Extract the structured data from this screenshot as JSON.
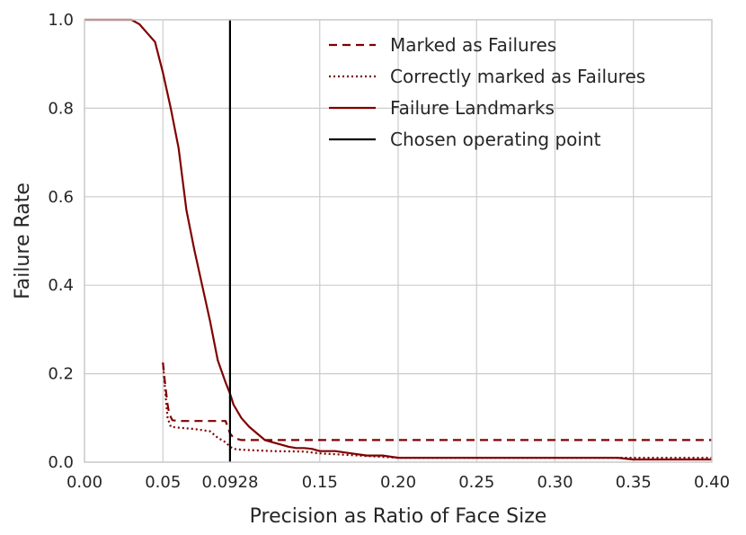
{
  "chart_data": {
    "type": "line",
    "title": "",
    "xlabel": "Precision as Ratio of Face Size",
    "ylabel": "Failure Rate",
    "xlim": [
      0.0,
      0.4
    ],
    "ylim": [
      0.0,
      1.0
    ],
    "xticks": [
      0.0,
      0.05,
      0.0928,
      0.15,
      0.2,
      0.25,
      0.3,
      0.35,
      0.4
    ],
    "xtick_labels": [
      "0.00",
      "0.05",
      "0.0928",
      "0.15",
      "0.20",
      "0.25",
      "0.30",
      "0.35",
      "0.40"
    ],
    "yticks": [
      0.0,
      0.2,
      0.4,
      0.6,
      0.8,
      1.0
    ],
    "ytick_labels": [
      "0.0",
      "0.2",
      "0.4",
      "0.6",
      "0.8",
      "1.0"
    ],
    "grid": true,
    "legend_position": "top-right",
    "series": [
      {
        "name": "Marked as Failures",
        "color": "#800000",
        "style": "dashed",
        "x": [
          0.05,
          0.051,
          0.052,
          0.053,
          0.054,
          0.056,
          0.06,
          0.09,
          0.0928,
          0.095,
          0.1,
          0.15,
          0.2,
          0.25,
          0.3,
          0.35,
          0.4
        ],
        "y": [
          0.225,
          0.19,
          0.16,
          0.13,
          0.11,
          0.095,
          0.093,
          0.093,
          0.065,
          0.055,
          0.05,
          0.05,
          0.05,
          0.05,
          0.05,
          0.05,
          0.05
        ]
      },
      {
        "name": "Correctly marked as Failures",
        "color": "#800000",
        "style": "dotted",
        "x": [
          0.05,
          0.051,
          0.052,
          0.053,
          0.055,
          0.06,
          0.07,
          0.08,
          0.085,
          0.09,
          0.0928,
          0.095,
          0.1,
          0.12,
          0.14,
          0.15,
          0.2,
          0.25,
          0.3,
          0.35,
          0.4
        ],
        "y": [
          0.225,
          0.18,
          0.14,
          0.1,
          0.08,
          0.078,
          0.075,
          0.07,
          0.055,
          0.045,
          0.035,
          0.03,
          0.028,
          0.025,
          0.024,
          0.02,
          0.01,
          0.01,
          0.01,
          0.01,
          0.01
        ]
      },
      {
        "name": "Failure Landmarks",
        "color": "#800000",
        "style": "solid",
        "x": [
          0.0,
          0.01,
          0.02,
          0.03,
          0.035,
          0.04,
          0.045,
          0.05,
          0.055,
          0.06,
          0.065,
          0.07,
          0.075,
          0.08,
          0.085,
          0.09,
          0.0928,
          0.095,
          0.1,
          0.105,
          0.11,
          0.115,
          0.12,
          0.125,
          0.13,
          0.135,
          0.14,
          0.145,
          0.15,
          0.16,
          0.17,
          0.18,
          0.19,
          0.2,
          0.25,
          0.3,
          0.34,
          0.345,
          0.35,
          0.4
        ],
        "y": [
          1.0,
          1.0,
          1.0,
          1.0,
          0.99,
          0.97,
          0.95,
          0.88,
          0.8,
          0.71,
          0.57,
          0.48,
          0.4,
          0.32,
          0.23,
          0.18,
          0.155,
          0.13,
          0.1,
          0.08,
          0.065,
          0.05,
          0.045,
          0.04,
          0.035,
          0.032,
          0.032,
          0.03,
          0.025,
          0.025,
          0.02,
          0.015,
          0.015,
          0.01,
          0.01,
          0.01,
          0.01,
          0.008,
          0.006,
          0.006
        ]
      },
      {
        "name": "Chosen operating point",
        "color": "#000000",
        "style": "solid",
        "x": [
          0.0928,
          0.0928
        ],
        "y": [
          0.0,
          1.0
        ]
      }
    ]
  }
}
